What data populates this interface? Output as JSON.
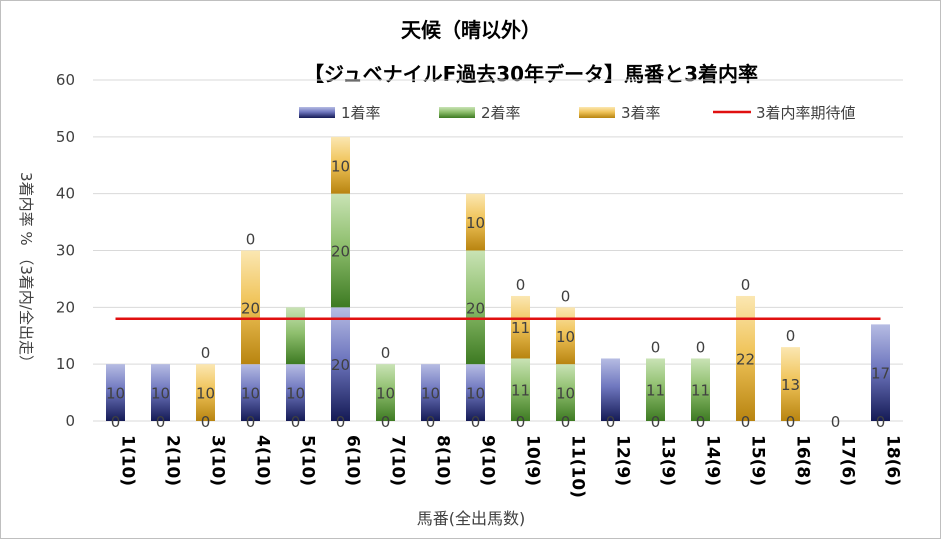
{
  "chart_data": {
    "type": "bar",
    "stacked": true,
    "title": "天候（晴以外）",
    "subtitle": "【ジュベナイルF過去30年データ】馬番と3着内率",
    "xlabel": "馬番(全出馬数)",
    "ylabel": "3着内率 %  （3着内/全出走）",
    "ylim": [
      0,
      60
    ],
    "yticks": [
      "0",
      "10",
      "20",
      "30",
      "40",
      "50",
      "60"
    ],
    "legend_position": "top",
    "categories": [
      "1(10)",
      "2(10)",
      "3(10)",
      "4(10)",
      "5(10)",
      "6(10)",
      "7(10)",
      "8(10)",
      "9(10)",
      "10(9)",
      "11(10)",
      "12(9)",
      "13(9)",
      "14(9)",
      "15(9)",
      "16(8)",
      "17(6)",
      "18(6)"
    ],
    "series": [
      {
        "name": "1着率",
        "color": "#3f4a9a",
        "values": [
          10,
          10,
          0,
          10,
          10,
          20,
          0,
          10,
          10,
          0,
          0,
          11,
          0,
          0,
          0,
          0,
          0,
          17
        ],
        "labels": [
          "10",
          "10",
          "",
          "10",
          "10",
          "20",
          "",
          "10",
          "10",
          "",
          "",
          "",
          "",
          "",
          "",
          "",
          "",
          "17"
        ]
      },
      {
        "name": "2着率",
        "color": "#5e9a3c",
        "values": [
          0,
          0,
          0,
          0,
          10,
          20,
          10,
          0,
          20,
          11,
          10,
          0,
          11,
          11,
          0,
          0,
          0,
          0
        ],
        "labels": [
          "",
          "",
          "",
          "",
          "",
          "20",
          "10",
          "",
          "20",
          "11",
          "10",
          "",
          "11",
          "11",
          "",
          "",
          "",
          ""
        ]
      },
      {
        "name": "3着率",
        "color": "#d9a520",
        "values": [
          0,
          0,
          10,
          20,
          0,
          10,
          0,
          0,
          10,
          11,
          10,
          0,
          0,
          0,
          22,
          13,
          0,
          0
        ],
        "labels": [
          "",
          "",
          "10",
          "20",
          "",
          "10",
          "",
          "",
          "10",
          "11",
          "10",
          "",
          "",
          "",
          "22",
          "13",
          "",
          ""
        ]
      }
    ],
    "zero_labels": [
      {
        "category": "1(10)",
        "text": "0"
      },
      {
        "category": "2(10)",
        "text": "0"
      },
      {
        "category": "3(10)",
        "text": "0"
      },
      {
        "category": "4(10)",
        "text": "0"
      },
      {
        "category": "5(10)",
        "text": "0"
      },
      {
        "category": "6(10)",
        "text": "0"
      },
      {
        "category": "7(10)",
        "text": "0"
      },
      {
        "category": "8(10)",
        "text": "0"
      },
      {
        "category": "9(10)",
        "text": "0"
      },
      {
        "category": "10(9)",
        "text": "0"
      },
      {
        "category": "11(10)",
        "text": "0"
      },
      {
        "category": "12(9)",
        "text": "0"
      },
      {
        "category": "13(9)",
        "text": "0"
      },
      {
        "category": "14(9)",
        "text": "0"
      },
      {
        "category": "15(9)",
        "text": "0"
      },
      {
        "category": "16(8)",
        "text": "0"
      },
      {
        "category": "17(6)",
        "text": "0"
      },
      {
        "category": "18(6)",
        "text": "0"
      }
    ],
    "top_labels": [
      {
        "category": "3(10)",
        "text": "0"
      },
      {
        "category": "4(10)",
        "text": "0"
      },
      {
        "category": "7(10)",
        "text": "0"
      },
      {
        "category": "10(9)",
        "text": "0"
      },
      {
        "category": "11(10)",
        "text": "0"
      },
      {
        "category": "13(9)",
        "text": "0"
      },
      {
        "category": "14(9)",
        "text": "0"
      },
      {
        "category": "15(9)",
        "text": "0"
      },
      {
        "category": "16(8)",
        "text": "0"
      }
    ],
    "expected_line": {
      "name": "3着内率期待値",
      "value": 18,
      "color": "#e01010"
    }
  }
}
